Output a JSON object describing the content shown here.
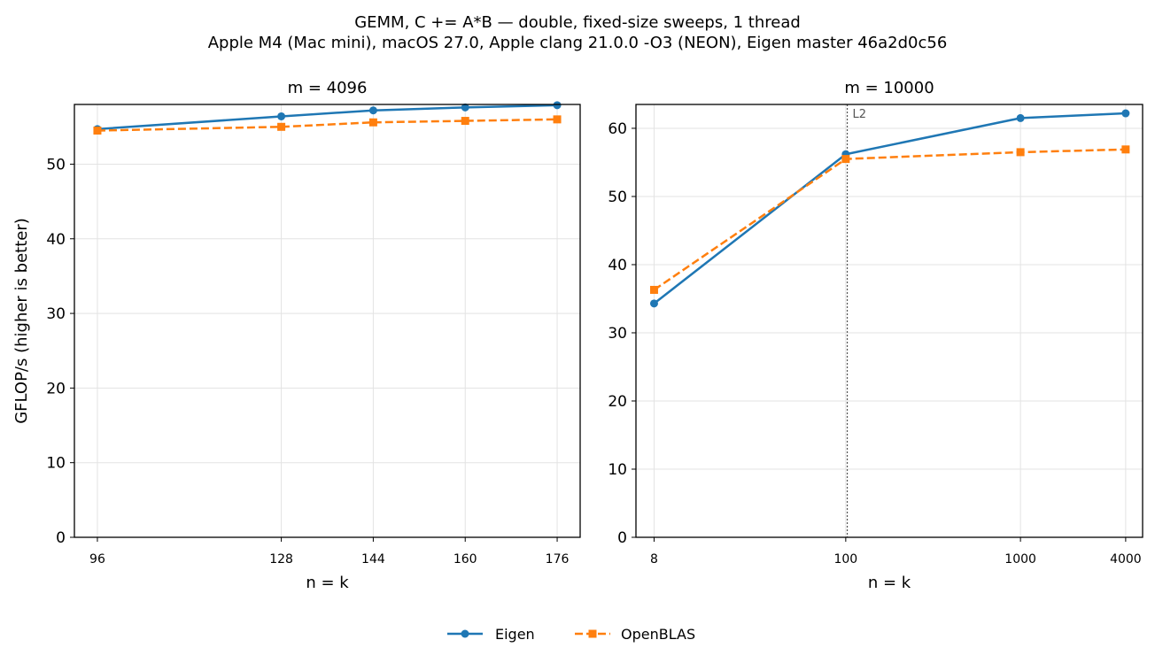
{
  "figure": {
    "title_line1": "GEMM, C += A*B — double, fixed-size sweeps, 1 thread",
    "title_line2": "Apple M4 (Mac mini), macOS 27.0, Apple clang 21.0.0 -O3 (NEON), Eigen master 46a2d0c56"
  },
  "colors": {
    "eigen": "#1f77b4",
    "openblas": "#ff7f0e"
  },
  "legend": {
    "eigen": "Eigen",
    "openblas": "OpenBLAS",
    "placement": "bottom-center"
  },
  "chart_data": [
    {
      "type": "line",
      "title": "m = 4096",
      "xlabel": "n = k",
      "ylabel": "GFLOP/s (higher is better)",
      "x_scale": "linear",
      "x": [
        96,
        128,
        144,
        160,
        176
      ],
      "x_tick_labels": [
        "96",
        "128",
        "144",
        "160",
        "176"
      ],
      "xlim": [
        92,
        180
      ],
      "ylim": [
        0,
        58
      ],
      "y_ticks": [
        0,
        10,
        20,
        30,
        40,
        50
      ],
      "grid": true,
      "series": [
        {
          "name": "Eigen",
          "marker": "circle",
          "line": "solid",
          "values": [
            54.7,
            56.4,
            57.2,
            57.6,
            57.9
          ]
        },
        {
          "name": "OpenBLAS",
          "marker": "square",
          "line": "dashed",
          "values": [
            54.5,
            55.0,
            55.6,
            55.8,
            56.0
          ]
        }
      ]
    },
    {
      "type": "line",
      "title": "m = 10000",
      "xlabel": "n = k",
      "ylabel": "",
      "x_scale": "log",
      "x": [
        8,
        100,
        1000,
        4000
      ],
      "x_tick_labels": [
        "8",
        "100",
        "1000",
        "4000"
      ],
      "xlim": [
        6.3,
        5000
      ],
      "ylim": [
        0,
        63.5
      ],
      "y_ticks": [
        0,
        10,
        20,
        30,
        40,
        50,
        60
      ],
      "grid": true,
      "annotations": [
        {
          "text": "L2",
          "x": 102,
          "style": "dotted-vertical-line"
        }
      ],
      "series": [
        {
          "name": "Eigen",
          "marker": "circle",
          "line": "solid",
          "values": [
            34.3,
            56.2,
            61.5,
            62.2
          ]
        },
        {
          "name": "OpenBLAS",
          "marker": "square",
          "line": "dashed",
          "values": [
            36.3,
            55.5,
            56.5,
            56.9
          ]
        }
      ]
    }
  ]
}
